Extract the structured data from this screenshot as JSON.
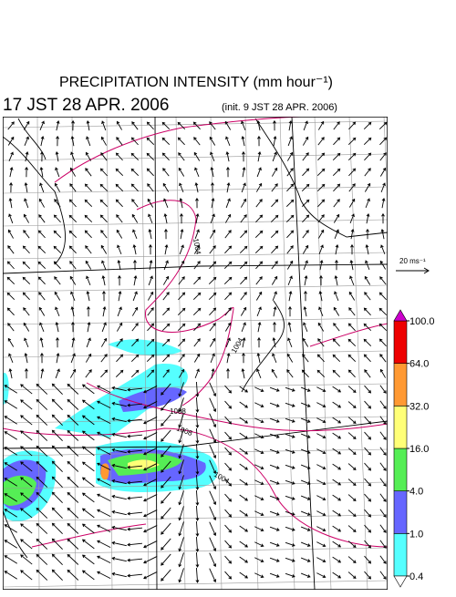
{
  "header": {
    "title": "PRECIPITATION INTENSITY (mm hour⁻¹)",
    "valid_time": "17 JST 28 APR. 2006",
    "init_time": "(init. 9 JST 28 APR. 2006)"
  },
  "vector_legend": {
    "label": "20 ms⁻¹"
  },
  "contour_labels": [
    "1004",
    "1004",
    "1008",
    "1008",
    "1004"
  ],
  "colorbar": {
    "levels": [
      {
        "value": 0.4,
        "label": "0.4"
      },
      {
        "value": 1,
        "label": "1.0"
      },
      {
        "value": 4,
        "label": "4.0"
      },
      {
        "value": 16,
        "label": "16.0"
      },
      {
        "value": 32,
        "label": "32.0"
      },
      {
        "value": 64,
        "label": "64.0"
      },
      {
        "value": 100,
        "label": "100.0"
      }
    ],
    "colors": [
      "#55ffff",
      "#6666ff",
      "#55ee55",
      "#ffff77",
      "#ff9933",
      "#ee0000"
    ],
    "over_color": "#cc00cc",
    "under_color": "#ffffff"
  }
}
